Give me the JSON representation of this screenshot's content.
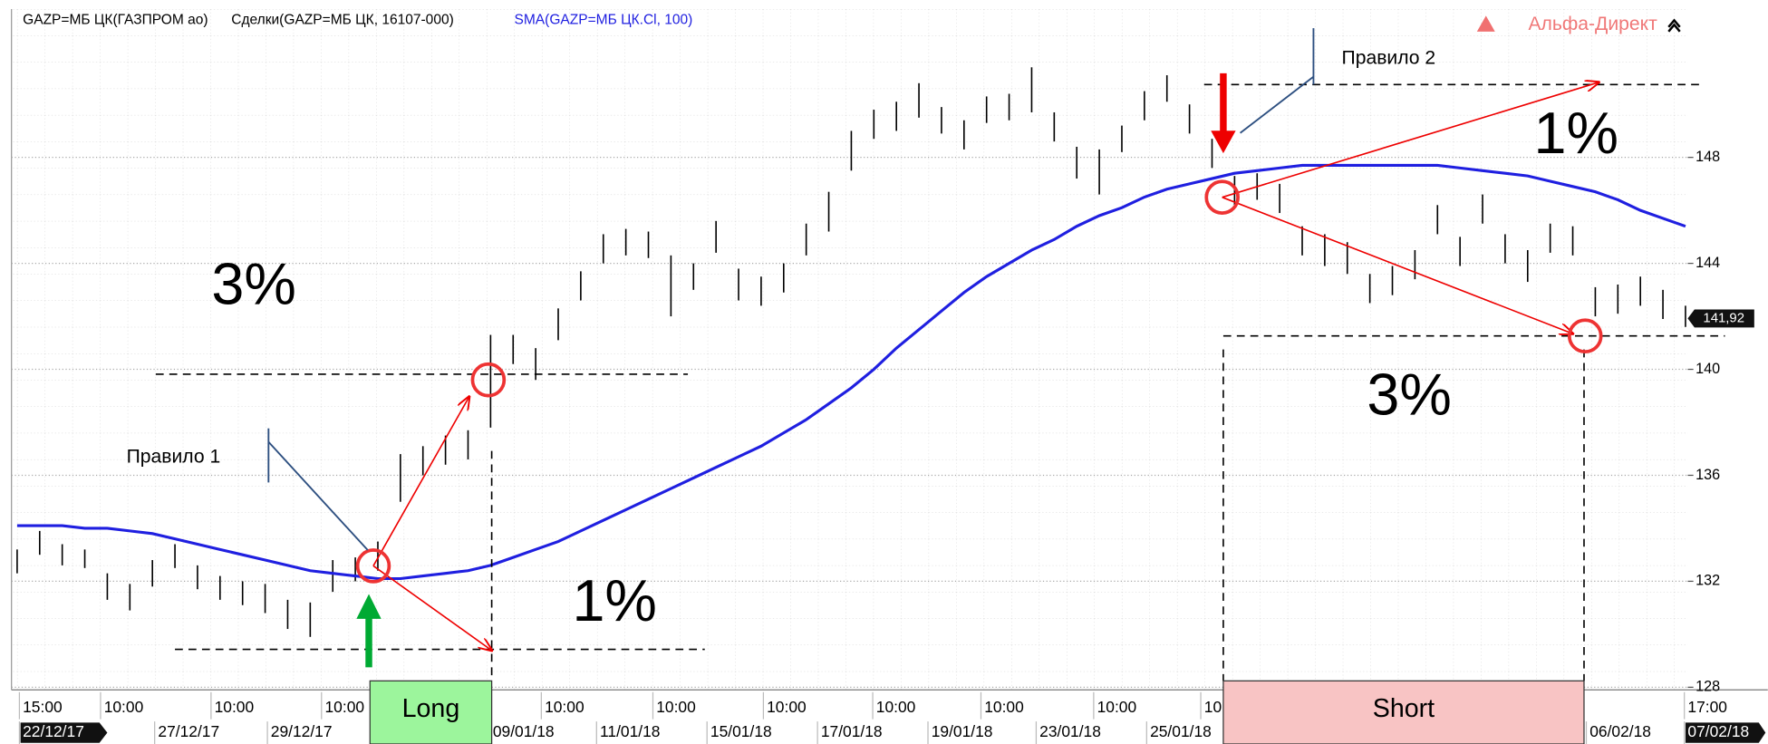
{
  "chart_data": {
    "type": "ohlc",
    "title": "GAZP=МБ ЦК(ГАЗПРОМ ао)",
    "subtitle": "Сделки(GAZP=МБ ЦК, 16107-000)",
    "bar_color": "#000000",
    "high": [
      133.2,
      133.9,
      133.4,
      133.2,
      132.3,
      131.9,
      132.8,
      133.4,
      132.6,
      132.2,
      132.0,
      131.9,
      131.3,
      131.2,
      132.8,
      132.9,
      133.5,
      136.8,
      137.1,
      137.5,
      137.7,
      141.3,
      141.3,
      140.8,
      142.3,
      143.7,
      145.1,
      145.3,
      145.2,
      144.3,
      144.0,
      145.6,
      143.8,
      143.5,
      144.0,
      145.5,
      146.7,
      149.0,
      149.8,
      150.1,
      150.8,
      149.9,
      149.4,
      150.3,
      150.4,
      151.4,
      149.7,
      148.4,
      148.3,
      149.2,
      150.5,
      151.1,
      150.0,
      148.7,
      147.3,
      147.4,
      147.0,
      145.4,
      145.1,
      144.8,
      143.6,
      143.9,
      144.5,
      146.2,
      145.0,
      146.6,
      145.1,
      144.5,
      145.5,
      145.4,
      143.1,
      143.2,
      143.5,
      143.0,
      142.4
    ],
    "low": [
      132.3,
      133.0,
      132.6,
      132.5,
      131.3,
      130.9,
      131.8,
      132.5,
      131.7,
      131.3,
      131.1,
      130.8,
      130.2,
      129.9,
      131.6,
      132.0,
      132.4,
      135.0,
      136.0,
      136.4,
      136.6,
      137.8,
      140.2,
      139.6,
      141.1,
      142.6,
      144.0,
      144.3,
      144.2,
      142.0,
      143.0,
      144.4,
      142.6,
      142.4,
      142.9,
      144.3,
      145.2,
      147.5,
      148.7,
      149.0,
      149.5,
      148.9,
      148.3,
      149.3,
      149.4,
      149.7,
      148.6,
      147.2,
      146.6,
      148.2,
      149.4,
      150.1,
      148.9,
      147.6,
      146.2,
      146.4,
      145.9,
      144.3,
      143.9,
      143.6,
      142.5,
      142.8,
      143.4,
      145.1,
      143.9,
      145.5,
      144.0,
      143.3,
      144.4,
      144.3,
      142.0,
      142.1,
      142.4,
      141.9,
      141.6
    ],
    "sma": {
      "name": "SMA(GAZP=МБ ЦК.Cl, 100)",
      "color": "#1f1fe0",
      "values": [
        134.1,
        134.1,
        134.1,
        134.0,
        134.0,
        133.9,
        133.8,
        133.6,
        133.4,
        133.2,
        133.0,
        132.8,
        132.6,
        132.4,
        132.3,
        132.2,
        132.1,
        132.1,
        132.2,
        132.3,
        132.4,
        132.6,
        132.9,
        133.2,
        133.5,
        133.9,
        134.3,
        134.7,
        135.1,
        135.5,
        135.9,
        136.3,
        136.7,
        137.1,
        137.6,
        138.1,
        138.7,
        139.3,
        140.0,
        140.8,
        141.5,
        142.2,
        142.9,
        143.5,
        144.0,
        144.5,
        144.9,
        145.4,
        145.8,
        146.1,
        146.5,
        146.8,
        147.0,
        147.2,
        147.4,
        147.5,
        147.6,
        147.7,
        147.7,
        147.7,
        147.7,
        147.7,
        147.7,
        147.7,
        147.6,
        147.5,
        147.4,
        147.3,
        147.1,
        146.9,
        146.7,
        146.4,
        146.0,
        145.7,
        145.4
      ]
    },
    "ylim": [
      127.9,
      153.6
    ],
    "yticks": [
      128,
      132,
      136,
      140,
      144,
      148
    ],
    "grid": true,
    "last_price": {
      "value": 141.92,
      "label": "141,92"
    },
    "x_labels_time": [
      "15:00",
      "10:00",
      "10:00",
      "10:00",
      "10:00",
      "10:00",
      "10:00",
      "10:00",
      "10:00",
      "10:00",
      "10",
      "17:00"
    ],
    "x_labels_date": [
      "22/12/17",
      "27/12/17",
      "29/12/17",
      "09/01/18",
      "11/01/18",
      "15/01/18",
      "17/01/18",
      "19/01/18",
      "23/01/18",
      "25/01/18",
      "06/02/18",
      "07/02/18"
    ],
    "annotations": {
      "rule1": "Правило 1",
      "rule2": "Правило 2",
      "long_target": "3%",
      "long_stop": "1%",
      "short_target": "3%",
      "short_stop": "1%",
      "long": "Long",
      "short": "Short"
    },
    "brand": "Альфа-Директ"
  }
}
